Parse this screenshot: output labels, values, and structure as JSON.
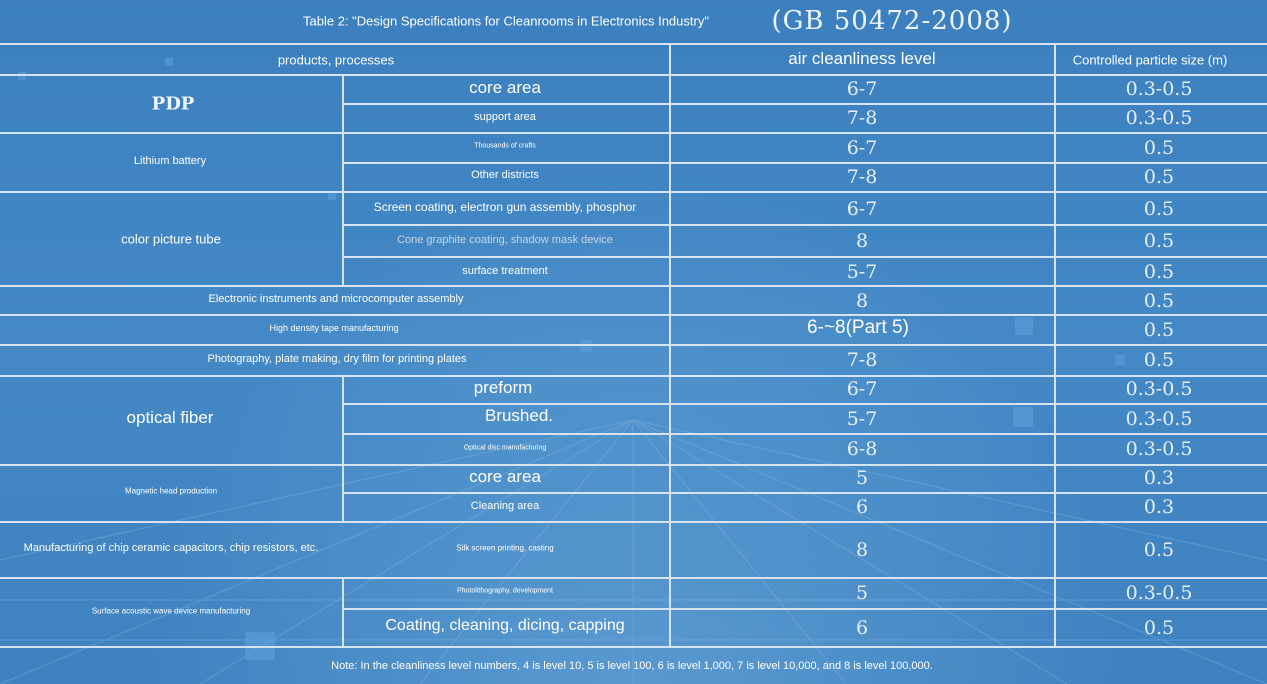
{
  "title": "Table 2: \"Design Specifications for Cleanrooms in Electronics Industry\"",
  "standard": "(GB 50472-2008)",
  "headers": {
    "products": "products, processes",
    "cleanliness": "air cleanliness level",
    "particle": "Controlled particle size (m)"
  },
  "groups": {
    "pdp": "PDP",
    "lithium": "Lithium battery",
    "color_tube": "color picture tube",
    "optical_fiber": "optical fiber",
    "magnetic_head": "Magnetic head production",
    "chip": "Manufacturing of chip ceramic capacitors, chip resistors, etc.",
    "saw": "Surface acoustic wave device manufacturing"
  },
  "rows": [
    {
      "process": "core area",
      "level": "6-7",
      "size": "0.3-0.5"
    },
    {
      "process": "support area",
      "level": "7-8",
      "size": "0.3-0.5"
    },
    {
      "process": "Thousands of crafts",
      "level": "6-7",
      "size": "0.5"
    },
    {
      "process": "Other districts",
      "level": "7-8",
      "size": "0.5"
    },
    {
      "process": "Screen coating, electron gun assembly, phosphor",
      "level": "6-7",
      "size": "0.5"
    },
    {
      "process": "Cone graphite coating, shadow mask device",
      "level": "8",
      "size": "0.5"
    },
    {
      "process": "surface treatment",
      "level": "5-7",
      "size": "0.5"
    },
    {
      "process": "Electronic instruments and microcomputer assembly",
      "level": "8",
      "size": "0.5"
    },
    {
      "process": "High density tape manufacturing",
      "level": "6-~8(Part 5)",
      "size": "0.5"
    },
    {
      "process": "Photography, plate making, dry film for printing plates",
      "level": "7-8",
      "size": "0.5"
    },
    {
      "process": "preform",
      "level": "6-7",
      "size": "0.3-0.5"
    },
    {
      "process": "Brushed.",
      "level": "5-7",
      "size": "0.3-0.5"
    },
    {
      "process": "Optical disc manufacturing",
      "level": "6-8",
      "size": "0.3-0.5"
    },
    {
      "process": "core area",
      "level": "5",
      "size": "0.3"
    },
    {
      "process": "Cleaning area",
      "level": "6",
      "size": "0.3"
    },
    {
      "process": "Silk screen printing, casting",
      "level": "8",
      "size": "0.5"
    },
    {
      "process": "Photolithography, development",
      "level": "5",
      "size": "0.3-0.5"
    },
    {
      "process": "Coating, cleaning, dicing, capping",
      "level": "6",
      "size": "0.5"
    }
  ],
  "note": "Note: In the cleanliness level numbers, 4 is level 10, 5 is level 100, 6 is level 1,000, 7 is level 10,000, and 8 is level 100,000.",
  "colors": {
    "background": "#3f83c2",
    "grid_line": "#d6e4ef",
    "text": "#ffffff"
  }
}
